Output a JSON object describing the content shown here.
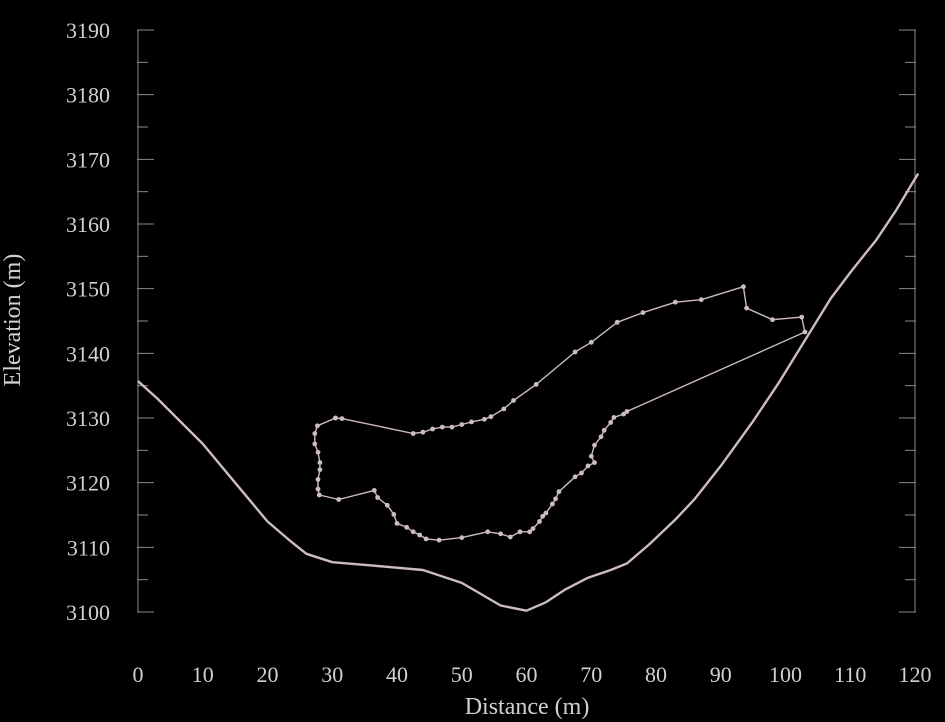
{
  "colors": {
    "background": "#000000",
    "foreground": "#d6cfcf",
    "axis": "#8a8a8a",
    "series": "#cdbcbc"
  },
  "chart_data": {
    "type": "line",
    "title": "",
    "xlabel": "Distance (m)",
    "ylabel": "Elevation (m)",
    "xlim": [
      0,
      120
    ],
    "ylim": [
      3100,
      3190
    ],
    "xticks": [
      0,
      10,
      20,
      30,
      40,
      50,
      60,
      70,
      80,
      90,
      100,
      110,
      120
    ],
    "yticks": [
      3100,
      3110,
      3120,
      3130,
      3140,
      3150,
      3160,
      3170,
      3180,
      3190
    ],
    "grid": false,
    "legend": "none",
    "series": [
      {
        "kind": "profile",
        "markers": false,
        "points": [
          [
            0,
            3135.7
          ],
          [
            3,
            3133
          ],
          [
            6,
            3130
          ],
          [
            10,
            3126
          ],
          [
            15,
            3120
          ],
          [
            20,
            3114
          ],
          [
            23.5,
            3111
          ],
          [
            26,
            3109
          ],
          [
            30,
            3107.7
          ],
          [
            36,
            3107.2
          ],
          [
            44,
            3106.5
          ],
          [
            50,
            3104.5
          ],
          [
            56,
            3101
          ],
          [
            60,
            3100.2
          ],
          [
            63,
            3101.5
          ],
          [
            66,
            3103.5
          ],
          [
            69.5,
            3105.3
          ],
          [
            73,
            3106.5
          ],
          [
            75.5,
            3107.5
          ],
          [
            79,
            3110.5
          ],
          [
            83,
            3114.3
          ],
          [
            86,
            3117.5
          ],
          [
            90,
            3122.6
          ],
          [
            95,
            3129.5
          ],
          [
            99,
            3135.5
          ],
          [
            103,
            3142
          ],
          [
            107,
            3148.5
          ],
          [
            110,
            3152.5
          ],
          [
            111.5,
            3154.4
          ],
          [
            114,
            3157.5
          ],
          [
            117,
            3162
          ],
          [
            120,
            3167
          ],
          [
            120.5,
            3167.8
          ]
        ]
      },
      {
        "kind": "outline",
        "markers": true,
        "points": [
          [
            30.5,
            3130
          ],
          [
            27.7,
            3128.8
          ],
          [
            27.3,
            3127.6
          ],
          [
            27.3,
            3126
          ],
          [
            27.8,
            3124.7
          ],
          [
            28.1,
            3123.1
          ],
          [
            28.1,
            3122
          ],
          [
            27.8,
            3120.5
          ],
          [
            27.8,
            3119
          ],
          [
            28,
            3118.1
          ],
          [
            31,
            3117.4
          ],
          [
            36.5,
            3118.8
          ],
          [
            37,
            3117.7
          ],
          [
            38.5,
            3116.5
          ],
          [
            39.5,
            3115.1
          ],
          [
            40,
            3113.7
          ],
          [
            41.5,
            3113.1
          ],
          [
            42.5,
            3112.4
          ],
          [
            43.5,
            3111.9
          ],
          [
            44.5,
            3111.3
          ],
          [
            46.5,
            3111.1
          ],
          [
            50,
            3111.5
          ],
          [
            54,
            3112.4
          ],
          [
            56,
            3112.1
          ],
          [
            57.5,
            3111.6
          ],
          [
            59,
            3112.4
          ],
          [
            60.5,
            3112.4
          ],
          [
            61,
            3112.9
          ],
          [
            62,
            3114
          ],
          [
            62.5,
            3114.8
          ],
          [
            63,
            3115.3
          ],
          [
            64,
            3116.7
          ],
          [
            64.5,
            3117.5
          ],
          [
            65,
            3118.6
          ],
          [
            67.5,
            3120.9
          ],
          [
            68.5,
            3121.5
          ],
          [
            69.5,
            3122.6
          ],
          [
            70.5,
            3123.1
          ],
          [
            70,
            3124.1
          ],
          [
            70.5,
            3125.8
          ],
          [
            71.5,
            3127.1
          ],
          [
            72,
            3128.1
          ],
          [
            73,
            3129.3
          ],
          [
            73.5,
            3130.1
          ],
          [
            75,
            3130.6
          ],
          [
            75.5,
            3131
          ],
          [
            103,
            3143.3
          ],
          [
            102.5,
            3145.6
          ],
          [
            98,
            3145.2
          ],
          [
            94,
            3147
          ],
          [
            93.5,
            3150.3
          ],
          [
            87,
            3148.3
          ],
          [
            83,
            3147.9
          ],
          [
            78,
            3146.3
          ],
          [
            74,
            3144.8
          ],
          [
            70,
            3141.7
          ],
          [
            67.5,
            3140.2
          ],
          [
            61.5,
            3135.2
          ],
          [
            58,
            3132.7
          ],
          [
            56.5,
            3131.4
          ],
          [
            54.5,
            3130.2
          ],
          [
            53.5,
            3129.8
          ],
          [
            51.5,
            3129.4
          ],
          [
            50,
            3129
          ],
          [
            48.5,
            3128.6
          ],
          [
            47,
            3128.6
          ],
          [
            45.5,
            3128.3
          ],
          [
            44,
            3127.8
          ],
          [
            42.5,
            3127.6
          ],
          [
            31.5,
            3129.9
          ],
          [
            30.5,
            3130
          ]
        ]
      }
    ]
  }
}
